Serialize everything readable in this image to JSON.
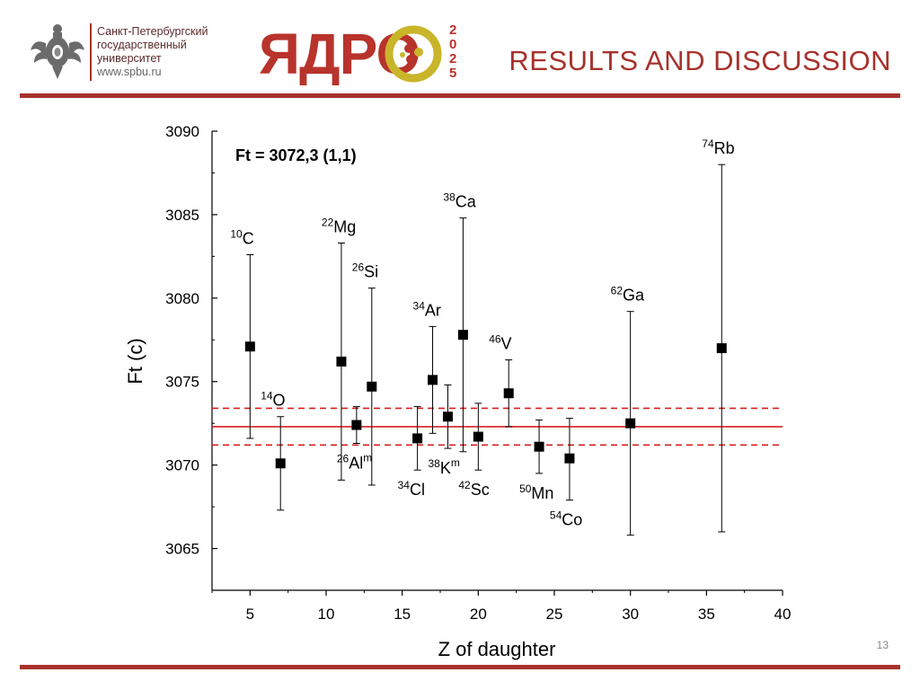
{
  "header": {
    "university_lines": [
      "Санкт-Петербургский",
      "государственный",
      "университет"
    ],
    "university_url": "www.spbu.ru",
    "conference_logo_text": "ЯДРО",
    "conference_year": "2025",
    "slide_title": "RESULTS AND DISCUSSION"
  },
  "footer": {
    "page_number": "13"
  },
  "colors": {
    "accent": "#a7322c",
    "fit_line": "#d62020",
    "marker": "#000000"
  },
  "chart_data": {
    "type": "scatter",
    "annotation": "Ft = 3072,3 (1,1)",
    "xlabel": "Z of daughter",
    "ylabel": "Ft (c)",
    "xlim": [
      2.5,
      40
    ],
    "ylim": [
      3062.5,
      3090
    ],
    "xticks": [
      5,
      10,
      15,
      20,
      25,
      30,
      35,
      40
    ],
    "yticks": [
      3065,
      3070,
      3075,
      3080,
      3085,
      3090
    ],
    "fit": {
      "value": 3072.3,
      "uncertainty": 1.1
    },
    "points": [
      {
        "sup": "10",
        "sym": "C",
        "x": 5,
        "y": 3077.1,
        "err_low": 3071.6,
        "err_high": 3082.6,
        "label_pos": "above"
      },
      {
        "sup": "14",
        "sym": "O",
        "x": 7,
        "y": 3070.1,
        "err_low": 3067.3,
        "err_high": 3072.9,
        "label_pos": "above"
      },
      {
        "sup": "22",
        "sym": "Mg",
        "x": 11,
        "y": 3076.2,
        "err_low": 3069.1,
        "err_high": 3083.3,
        "label_pos": "above"
      },
      {
        "sup": "26",
        "sym": "Al",
        "mod": "m",
        "x": 12,
        "y": 3072.4,
        "err_low": 3071.3,
        "err_high": 3073.5,
        "label_pos": "below"
      },
      {
        "sup": "26",
        "sym": "Si",
        "x": 13,
        "y": 3074.7,
        "err_low": 3068.8,
        "err_high": 3080.6,
        "label_pos": "above"
      },
      {
        "sup": "34",
        "sym": "Cl",
        "x": 16,
        "y": 3071.6,
        "err_low": 3069.7,
        "err_high": 3073.5,
        "label_pos": "below"
      },
      {
        "sup": "34",
        "sym": "Ar",
        "x": 17,
        "y": 3075.1,
        "err_low": 3071.9,
        "err_high": 3078.3,
        "label_pos": "above"
      },
      {
        "sup": "38",
        "sym": "K",
        "mod": "m",
        "x": 18,
        "y": 3072.9,
        "err_low": 3071.0,
        "err_high": 3074.8,
        "label_pos": "below"
      },
      {
        "sup": "38",
        "sym": "Ca",
        "x": 19,
        "y": 3077.8,
        "err_low": 3070.8,
        "err_high": 3084.8,
        "label_pos": "above"
      },
      {
        "sup": "42",
        "sym": "Sc",
        "x": 20,
        "y": 3071.7,
        "err_low": 3069.7,
        "err_high": 3073.7,
        "label_pos": "below"
      },
      {
        "sup": "46",
        "sym": "V",
        "x": 22,
        "y": 3074.3,
        "err_low": 3072.3,
        "err_high": 3076.3,
        "label_pos": "above"
      },
      {
        "sup": "50",
        "sym": "Mn",
        "x": 24,
        "y": 3071.1,
        "err_low": 3069.5,
        "err_high": 3072.7,
        "label_pos": "below"
      },
      {
        "sup": "54",
        "sym": "Co",
        "x": 26,
        "y": 3070.4,
        "err_low": 3067.9,
        "err_high": 3072.8,
        "label_pos": "below"
      },
      {
        "sup": "62",
        "sym": "Ga",
        "x": 30,
        "y": 3072.5,
        "err_low": 3065.8,
        "err_high": 3079.2,
        "label_pos": "above"
      },
      {
        "sup": "74",
        "sym": "Rb",
        "x": 36,
        "y": 3077.0,
        "err_low": 3066.0,
        "err_high": 3088.0,
        "label_pos": "above"
      }
    ]
  }
}
